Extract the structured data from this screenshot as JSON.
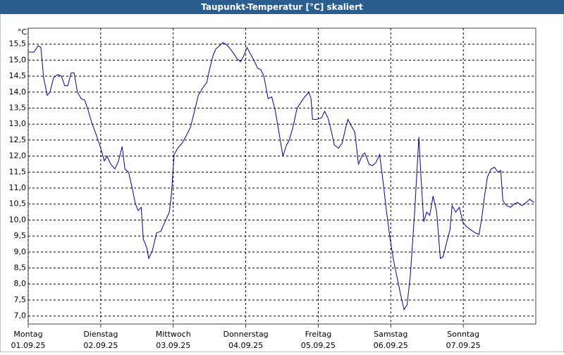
{
  "chart_data": {
    "type": "line",
    "title": "Taupunkt-Temperatur [°C] skaliert",
    "y_unit": "°C",
    "color": "#0000a0",
    "grid": true,
    "xlim": [
      0,
      168
    ],
    "ylim": [
      6.75,
      16.0
    ],
    "yticks": [
      {
        "value": 7.0,
        "label": "7,0"
      },
      {
        "value": 7.5,
        "label": "7,5"
      },
      {
        "value": 8.0,
        "label": "8,0"
      },
      {
        "value": 8.5,
        "label": "8,5"
      },
      {
        "value": 9.0,
        "label": "9,0"
      },
      {
        "value": 9.5,
        "label": "9,5"
      },
      {
        "value": 10.0,
        "label": "10,0"
      },
      {
        "value": 10.5,
        "label": "10,5"
      },
      {
        "value": 11.0,
        "label": "11,0"
      },
      {
        "value": 11.5,
        "label": "11,5"
      },
      {
        "value": 12.0,
        "label": "12,0"
      },
      {
        "value": 12.5,
        "label": "12,5"
      },
      {
        "value": 13.0,
        "label": "13,0"
      },
      {
        "value": 13.5,
        "label": "13,5"
      },
      {
        "value": 14.0,
        "label": "14,0"
      },
      {
        "value": 14.5,
        "label": "14,5"
      },
      {
        "value": 15.0,
        "label": "15,0"
      },
      {
        "value": 15.5,
        "label": "15,5"
      }
    ],
    "xticks": [
      {
        "value": 0,
        "label": "Montag",
        "sublabel": "01.09.25"
      },
      {
        "value": 24,
        "label": "Dienstag",
        "sublabel": "02.09.25"
      },
      {
        "value": 48,
        "label": "Mittwoch",
        "sublabel": "03.09.25"
      },
      {
        "value": 72,
        "label": "Donnerstag",
        "sublabel": "04.09.25"
      },
      {
        "value": 96,
        "label": "Freitag",
        "sublabel": "05.09.25"
      },
      {
        "value": 120,
        "label": "Samstag",
        "sublabel": "06.09.25"
      },
      {
        "value": 144,
        "label": "Sonntag",
        "sublabel": "07.09.25"
      }
    ],
    "x": [
      0,
      1.9,
      3.3,
      4.2,
      5.1,
      6.3,
      7.2,
      8.4,
      9.8,
      11,
      12.1,
      13.1,
      14.2,
      15.2,
      16.3,
      17.5,
      18.7,
      19.8,
      21,
      22.4,
      24,
      25.2,
      26.1,
      27.3,
      28.7,
      29.9,
      31.1,
      32,
      33.2,
      34.3,
      35.5,
      36.4,
      37.4,
      38.1,
      39.2,
      39.9,
      41.1,
      42.5,
      43.9,
      45.3,
      46.7,
      47.4,
      48.3,
      49.5,
      50.9,
      52.1,
      53.7,
      54.9,
      56.3,
      57.9,
      59.1,
      60,
      61.2,
      62.1,
      63.3,
      64.4,
      65.4,
      66.5,
      67.7,
      69.1,
      70.3,
      71.4,
      72.4,
      73.5,
      74.7,
      75.9,
      77,
      78,
      79.4,
      80.6,
      81.7,
      82.9,
      84.3,
      85.5,
      86.4,
      87.6,
      89,
      90.4,
      91.5,
      92.9,
      93.6,
      94.1,
      95.7,
      97.1,
      98.1,
      99.2,
      100.4,
      101.3,
      102.7,
      103.9,
      105.1,
      105.8,
      106.9,
      108.1,
      109.3,
      110.7,
      111.4,
      112.8,
      113.9,
      115.1,
      116.3,
      117.4,
      118.6,
      119.8,
      120.9,
      122.1,
      123.3,
      124.4,
      125.4,
      126.5,
      127.9,
      129.3,
      130,
      130.9,
      131.9,
      132.9,
      134,
      135.2,
      136.4,
      137.3,
      138.5,
      139.6,
      140.3,
      141.5,
      142.7,
      143.8,
      145,
      146.4,
      148,
      149.2,
      150.1,
      151.1,
      152,
      153.2,
      154.3,
      155.5,
      156.4,
      157.1,
      158.3,
      159.7,
      160.8,
      162,
      163.4,
      164.8,
      166,
      167.4
    ],
    "values": [
      15.25,
      15.25,
      15.45,
      15.4,
      14.45,
      13.9,
      14.0,
      14.45,
      14.55,
      14.5,
      14.2,
      14.2,
      14.6,
      14.6,
      14.0,
      13.8,
      13.75,
      13.45,
      13.05,
      12.7,
      12.25,
      11.85,
      12.0,
      11.75,
      11.6,
      11.85,
      12.3,
      11.6,
      11.5,
      11.05,
      10.5,
      10.3,
      10.4,
      9.4,
      9.15,
      8.8,
      9.05,
      9.6,
      9.65,
      9.95,
      10.25,
      10.8,
      12.05,
      12.25,
      12.4,
      12.6,
      12.9,
      13.35,
      13.9,
      14.15,
      14.3,
      14.7,
      15.15,
      15.35,
      15.45,
      15.55,
      15.5,
      15.4,
      15.25,
      15.05,
      14.95,
      15.15,
      15.4,
      15.2,
      15.0,
      14.75,
      14.7,
      14.5,
      13.8,
      13.85,
      13.45,
      12.8,
      12.0,
      12.35,
      12.5,
      12.9,
      13.5,
      13.7,
      13.85,
      14.0,
      13.8,
      13.15,
      13.15,
      13.2,
      13.4,
      13.2,
      12.75,
      12.35,
      12.25,
      12.4,
      12.9,
      13.15,
      12.95,
      12.75,
      11.75,
      12.05,
      12.1,
      11.75,
      11.7,
      11.8,
      12.05,
      11.25,
      10.25,
      9.4,
      8.75,
      8.2,
      7.65,
      7.2,
      7.35,
      8.3,
      10.25,
      12.6,
      11.35,
      9.95,
      10.25,
      10.15,
      10.75,
      10.25,
      8.8,
      8.85,
      9.3,
      9.7,
      10.45,
      10.25,
      10.4,
      9.95,
      9.8,
      9.7,
      9.6,
      9.55,
      10.05,
      10.8,
      11.35,
      11.6,
      11.65,
      11.5,
      11.55,
      10.6,
      10.45,
      10.4,
      10.5,
      10.55,
      10.45,
      10.55,
      10.65,
      10.55
    ]
  }
}
